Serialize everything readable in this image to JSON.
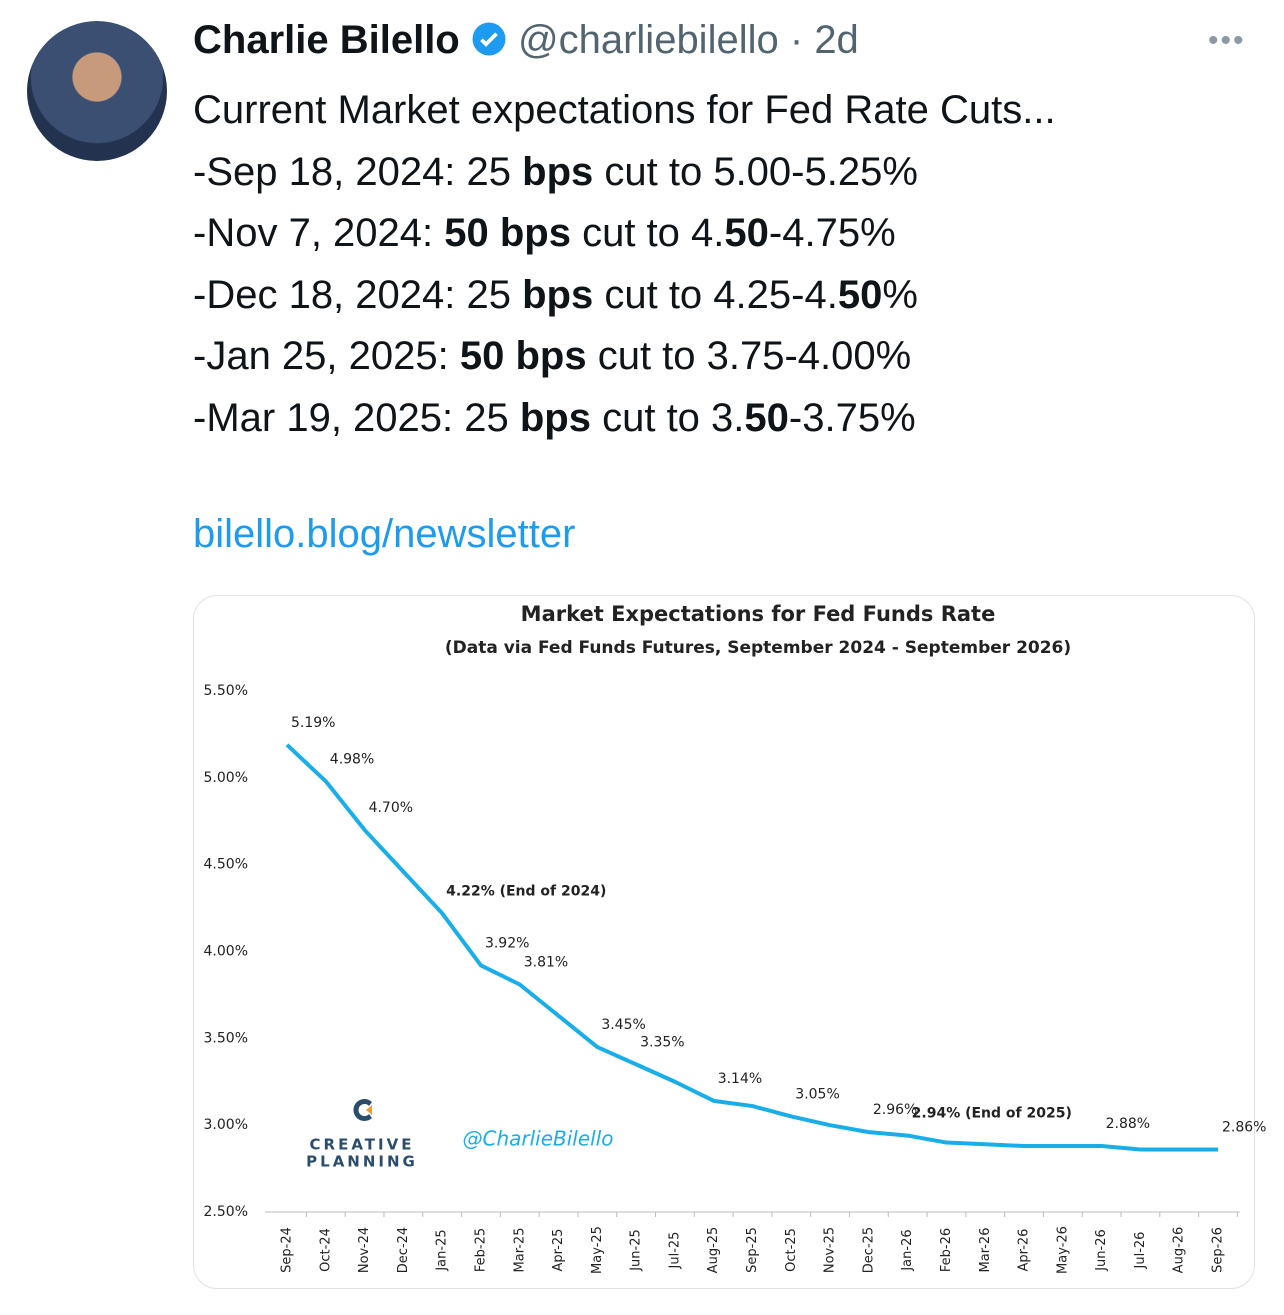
{
  "tweet": {
    "author": {
      "name": "Charlie Bilello",
      "handle": "@charliebilello",
      "separator": "·",
      "time": "2d"
    },
    "lines": [
      [
        {
          "text": "Current Market expectations for Fed Rate Cuts..."
        }
      ],
      [
        {
          "text": "-Sep 18, 2024: 25 "
        },
        {
          "text": "bps",
          "bold": true
        },
        {
          "text": " cut to 5.00-5.25%"
        }
      ],
      [
        {
          "text": "-Nov 7, 2024: "
        },
        {
          "text": "50 bps",
          "bold": true
        },
        {
          "text": " cut to 4."
        },
        {
          "text": "50",
          "bold": true
        },
        {
          "text": "-4.75%"
        }
      ],
      [
        {
          "text": "-Dec 18, 2024: 25 "
        },
        {
          "text": "bps",
          "bold": true
        },
        {
          "text": " cut to 4.25-4."
        },
        {
          "text": "50",
          "bold": true
        },
        {
          "text": "%"
        }
      ],
      [
        {
          "text": "-Jan 25, 2025: "
        },
        {
          "text": "50 bps",
          "bold": true
        },
        {
          "text": " cut to 3.75-4.00%"
        }
      ],
      [
        {
          "text": "-Mar 19, 2025: 25 "
        },
        {
          "text": "bps",
          "bold": true
        },
        {
          "text": " cut to 3."
        },
        {
          "text": "50",
          "bold": true
        },
        {
          "text": "-3.75%"
        }
      ]
    ],
    "link": "bilello.blog/newsletter",
    "logo": {
      "line1": "CREATIVE",
      "line2": "PLANNING"
    },
    "watermark": "@CharlieBilello"
  },
  "chart_data": {
    "type": "line",
    "title": "Market Expectations for Fed Funds Rate",
    "subtitle": "(Data via Fed Funds Futures, September 2024 - September 2026)",
    "categories": [
      "Sep-24",
      "Oct-24",
      "Nov-24",
      "Dec-24",
      "Jan-25",
      "Feb-25",
      "Mar-25",
      "Apr-25",
      "May-25",
      "Jun-25",
      "Jul-25",
      "Aug-25",
      "Sep-25",
      "Oct-25",
      "Nov-25",
      "Dec-25",
      "Jan-26",
      "Feb-26",
      "Mar-26",
      "Apr-26",
      "May-26",
      "Jun-26",
      "Jul-26",
      "Aug-26",
      "Sep-26"
    ],
    "series": [
      {
        "color": "#1aaee8",
        "values": [
          5.19,
          4.98,
          4.7,
          4.46,
          4.22,
          3.92,
          3.81,
          3.63,
          3.45,
          3.35,
          3.25,
          3.14,
          3.11,
          3.05,
          3.0,
          2.96,
          2.94,
          2.9,
          2.89,
          2.88,
          2.88,
          2.88,
          2.86,
          2.86,
          2.86
        ],
        "value_labels": [
          "5.19%",
          "4.98%",
          "4.70%",
          null,
          "4.22% (End of 2024)",
          "3.92%",
          "3.81%",
          null,
          "3.45%",
          "3.35%",
          null,
          "3.14%",
          null,
          "3.05%",
          null,
          "2.96%",
          "2.94% (End of 2025)",
          null,
          null,
          null,
          null,
          "2.88%",
          null,
          null,
          "2.86%"
        ]
      }
    ],
    "ylim": [
      2.5,
      5.5
    ],
    "yticks": [
      {
        "value": 2.5,
        "label": "2.50%"
      },
      {
        "value": 3,
        "label": "3.00%"
      },
      {
        "value": 3.5,
        "label": "3.50%"
      },
      {
        "value": 4,
        "label": "4.00%"
      },
      {
        "value": 4.5,
        "label": "4.50%"
      },
      {
        "value": 5,
        "label": "5.00%"
      },
      {
        "value": 5.5,
        "label": "5.50%"
      }
    ],
    "grid": false
  }
}
